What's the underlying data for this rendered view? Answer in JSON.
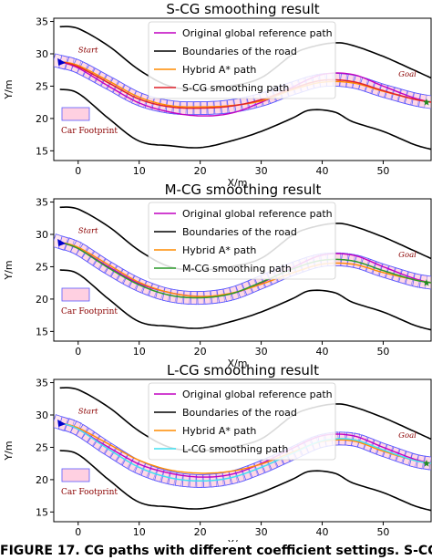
{
  "caption": "FIGURE 17. CG paths with different coefficient settings. S-CG:",
  "colors": {
    "reference": "#c000c0",
    "boundary": "#000000",
    "hybrid": "#ff8c00",
    "footprint_fill": "#ffc8dc",
    "footprint_edge": "#5a5aff",
    "start_marker": "#0000cc",
    "goal_marker": "#228b22",
    "annotation": "#8b0000"
  },
  "chart_data": [
    {
      "type": "line",
      "title": "S-CG smoothing result",
      "xlabel": "X/m",
      "ylabel": "Y/m",
      "xlim": [
        -4,
        58
      ],
      "ylim": [
        13.5,
        35.5
      ],
      "xticks": [
        0,
        10,
        20,
        30,
        40,
        50
      ],
      "yticks": [
        15,
        20,
        25,
        30,
        35
      ],
      "grid": false,
      "legend_position": "top-center",
      "annotations": {
        "start": "Start",
        "goal": "Goal",
        "footprint": "Car Footprint"
      },
      "smoothing_color": "#e0202a",
      "series": [
        {
          "name": "Original global reference path",
          "x": [
            -3,
            0,
            5,
            10,
            15,
            20,
            25,
            30,
            35,
            40,
            45,
            50,
            55,
            58
          ],
          "y": [
            28.8,
            27.8,
            25.0,
            22.4,
            21.0,
            20.4,
            20.8,
            22.5,
            24.8,
            26.8,
            26.8,
            25.0,
            23.2,
            22.5
          ]
        },
        {
          "name": "Boundaries of the road",
          "x": [
            -3,
            0,
            5,
            10,
            15,
            20,
            25,
            30,
            35,
            38,
            42,
            45,
            50,
            55,
            58
          ],
          "y": [
            34.2,
            33.9,
            31.2,
            27.5,
            25.0,
            24.5,
            25.0,
            26.3,
            29.8,
            31.0,
            31.7,
            31.3,
            29.6,
            27.5,
            26.2
          ]
        },
        {
          "name": "",
          "x": [
            -3,
            0,
            5,
            10,
            15,
            20,
            25,
            30,
            35,
            38,
            42,
            45,
            50,
            55,
            58
          ],
          "y": [
            24.5,
            23.9,
            20.0,
            16.5,
            15.8,
            15.5,
            16.5,
            18.0,
            20.0,
            21.3,
            21.0,
            19.5,
            18.0,
            16.0,
            15.2
          ]
        },
        {
          "name": "Hybrid A* path",
          "x": [
            -3,
            0,
            5,
            10,
            15,
            20,
            25,
            30,
            35,
            40,
            45,
            50,
            55,
            58
          ],
          "y": [
            28.8,
            28.2,
            25.8,
            23.3,
            22.0,
            21.8,
            22.0,
            22.7,
            24.4,
            25.6,
            25.5,
            24.2,
            23.0,
            22.5
          ]
        },
        {
          "name": "S-CG smoothing path",
          "x": [
            -3,
            0,
            5,
            10,
            15,
            20,
            25,
            30,
            35,
            40,
            45,
            50,
            55,
            58
          ],
          "y": [
            28.8,
            28.0,
            25.5,
            23.0,
            21.8,
            21.6,
            21.9,
            22.9,
            24.6,
            25.9,
            25.7,
            24.3,
            23.0,
            22.5
          ]
        }
      ]
    },
    {
      "type": "line",
      "title": "M-CG smoothing result",
      "xlabel": "X/m",
      "ylabel": "Y/m",
      "xlim": [
        -4,
        58
      ],
      "ylim": [
        13.5,
        35.5
      ],
      "xticks": [
        0,
        10,
        20,
        30,
        40,
        50
      ],
      "yticks": [
        15,
        20,
        25,
        30,
        35
      ],
      "grid": false,
      "legend_position": "top-center",
      "annotations": {
        "start": "Start",
        "goal": "Goal",
        "footprint": "Car Footprint"
      },
      "smoothing_color": "#2a9a2a",
      "series": [
        {
          "name": "Original global reference path",
          "x": [
            -3,
            0,
            5,
            10,
            15,
            20,
            25,
            30,
            35,
            40,
            45,
            50,
            55,
            58
          ],
          "y": [
            28.8,
            27.8,
            25.0,
            22.4,
            21.0,
            20.4,
            20.8,
            22.5,
            24.8,
            26.8,
            26.8,
            25.0,
            23.2,
            22.5
          ]
        },
        {
          "name": "Boundaries of the road",
          "x": [
            -3,
            0,
            5,
            10,
            15,
            20,
            25,
            30,
            35,
            38,
            42,
            45,
            50,
            55,
            58
          ],
          "y": [
            34.2,
            33.9,
            31.2,
            27.5,
            25.0,
            24.5,
            25.0,
            26.3,
            29.8,
            31.0,
            31.7,
            31.3,
            29.6,
            27.5,
            26.2
          ]
        },
        {
          "name": "",
          "x": [
            -3,
            0,
            5,
            10,
            15,
            20,
            25,
            30,
            35,
            38,
            42,
            45,
            50,
            55,
            58
          ],
          "y": [
            24.5,
            23.9,
            20.0,
            16.5,
            15.8,
            15.5,
            16.5,
            18.0,
            20.0,
            21.3,
            21.0,
            19.5,
            18.0,
            16.0,
            15.2
          ]
        },
        {
          "name": "Hybrid A* path",
          "x": [
            -3,
            0,
            5,
            10,
            15,
            20,
            25,
            30,
            35,
            40,
            45,
            50,
            55,
            58
          ],
          "y": [
            28.8,
            28.0,
            25.3,
            22.6,
            21.0,
            20.4,
            20.9,
            22.3,
            24.0,
            25.4,
            25.4,
            24.1,
            23.0,
            22.5
          ]
        },
        {
          "name": "M-CG smoothing path",
          "x": [
            -3,
            0,
            5,
            10,
            15,
            20,
            25,
            30,
            35,
            40,
            45,
            50,
            55,
            58
          ],
          "y": [
            28.8,
            27.8,
            24.8,
            22.2,
            20.6,
            20.2,
            20.8,
            22.6,
            24.6,
            26.0,
            25.9,
            24.4,
            23.0,
            22.5
          ]
        }
      ]
    },
    {
      "type": "line",
      "title": "L-CG smoothing result",
      "xlabel": "X/m",
      "ylabel": "Y/m",
      "xlim": [
        -4,
        58
      ],
      "ylim": [
        13.5,
        35.5
      ],
      "xticks": [
        0,
        10,
        20,
        30,
        40,
        50
      ],
      "yticks": [
        15,
        20,
        25,
        30,
        35
      ],
      "grid": false,
      "legend_position": "top-center",
      "annotations": {
        "start": "Start",
        "goal": "Goal",
        "footprint": "Car Footprint"
      },
      "smoothing_color": "#40e0f0",
      "series": [
        {
          "name": "Original global reference path",
          "x": [
            -3,
            0,
            5,
            10,
            15,
            20,
            25,
            30,
            35,
            40,
            45,
            50,
            55,
            58
          ],
          "y": [
            28.8,
            27.8,
            25.0,
            22.4,
            21.0,
            20.4,
            20.8,
            22.5,
            24.8,
            26.8,
            26.8,
            25.0,
            23.2,
            22.5
          ]
        },
        {
          "name": "Boundaries of the road",
          "x": [
            -3,
            0,
            5,
            10,
            15,
            20,
            25,
            30,
            35,
            38,
            42,
            45,
            50,
            55,
            58
          ],
          "y": [
            34.2,
            33.9,
            31.2,
            27.5,
            25.0,
            24.5,
            25.0,
            26.3,
            29.8,
            31.0,
            31.7,
            31.3,
            29.6,
            27.5,
            26.2
          ]
        },
        {
          "name": "",
          "x": [
            -3,
            0,
            5,
            10,
            15,
            20,
            25,
            30,
            35,
            38,
            42,
            45,
            50,
            55,
            58
          ],
          "y": [
            24.5,
            23.9,
            20.0,
            16.5,
            15.8,
            15.5,
            16.5,
            18.0,
            20.0,
            21.3,
            21.0,
            19.5,
            18.0,
            16.0,
            15.2
          ]
        },
        {
          "name": "Hybrid A* path",
          "x": [
            -3,
            0,
            5,
            10,
            15,
            20,
            25,
            30,
            35,
            40,
            45,
            50,
            55,
            58
          ],
          "y": [
            28.8,
            28.0,
            25.5,
            23.0,
            21.5,
            21.0,
            21.3,
            22.4,
            24.2,
            25.9,
            26.0,
            24.4,
            23.0,
            22.5
          ]
        },
        {
          "name": "L-CG smoothing path",
          "x": [
            -3,
            0,
            5,
            10,
            15,
            20,
            25,
            30,
            35,
            40,
            45,
            50,
            55,
            58
          ],
          "y": [
            28.8,
            27.8,
            24.7,
            21.9,
            20.3,
            19.8,
            20.3,
            21.9,
            24.0,
            26.0,
            26.2,
            24.6,
            23.0,
            22.5
          ]
        }
      ]
    }
  ]
}
